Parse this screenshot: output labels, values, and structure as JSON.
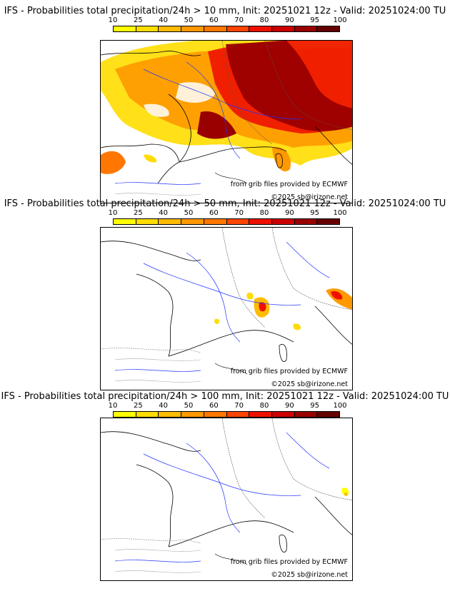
{
  "colorbar": {
    "ticks": [
      "10",
      "25",
      "40",
      "50",
      "60",
      "70",
      "80",
      "90",
      "95",
      "100"
    ],
    "colors": [
      "#ffff00",
      "#ffdd00",
      "#ffbb00",
      "#ff9900",
      "#ff7700",
      "#ff4400",
      "#ee1100",
      "#cc0000",
      "#990000",
      "#660000"
    ]
  },
  "panels": [
    {
      "title": "IFS - Probabilities total precipitation/24h > 10 mm, Init: 20251021 12z - Valid: 20251024:00 TU",
      "source_credit": "from grib files provided by ECMWF",
      "copyright": "©2025 sb@irizone.net"
    },
    {
      "title": "IFS - Probabilities total precipitation/24h > 50 mm, Init: 20251021 12z - Valid: 20251024:00 TU",
      "source_credit": "from grib files provided by ECMWF",
      "copyright": "©2025 sb@irizone.net"
    },
    {
      "title": "IFS - Probabilities total precipitation/24h > 100 mm, Init: 20251021 12z - Valid: 20251024:00 TU",
      "source_credit": "from grib files provided by ECMWF",
      "copyright": "©2025 sb@irizone.net"
    }
  ]
}
